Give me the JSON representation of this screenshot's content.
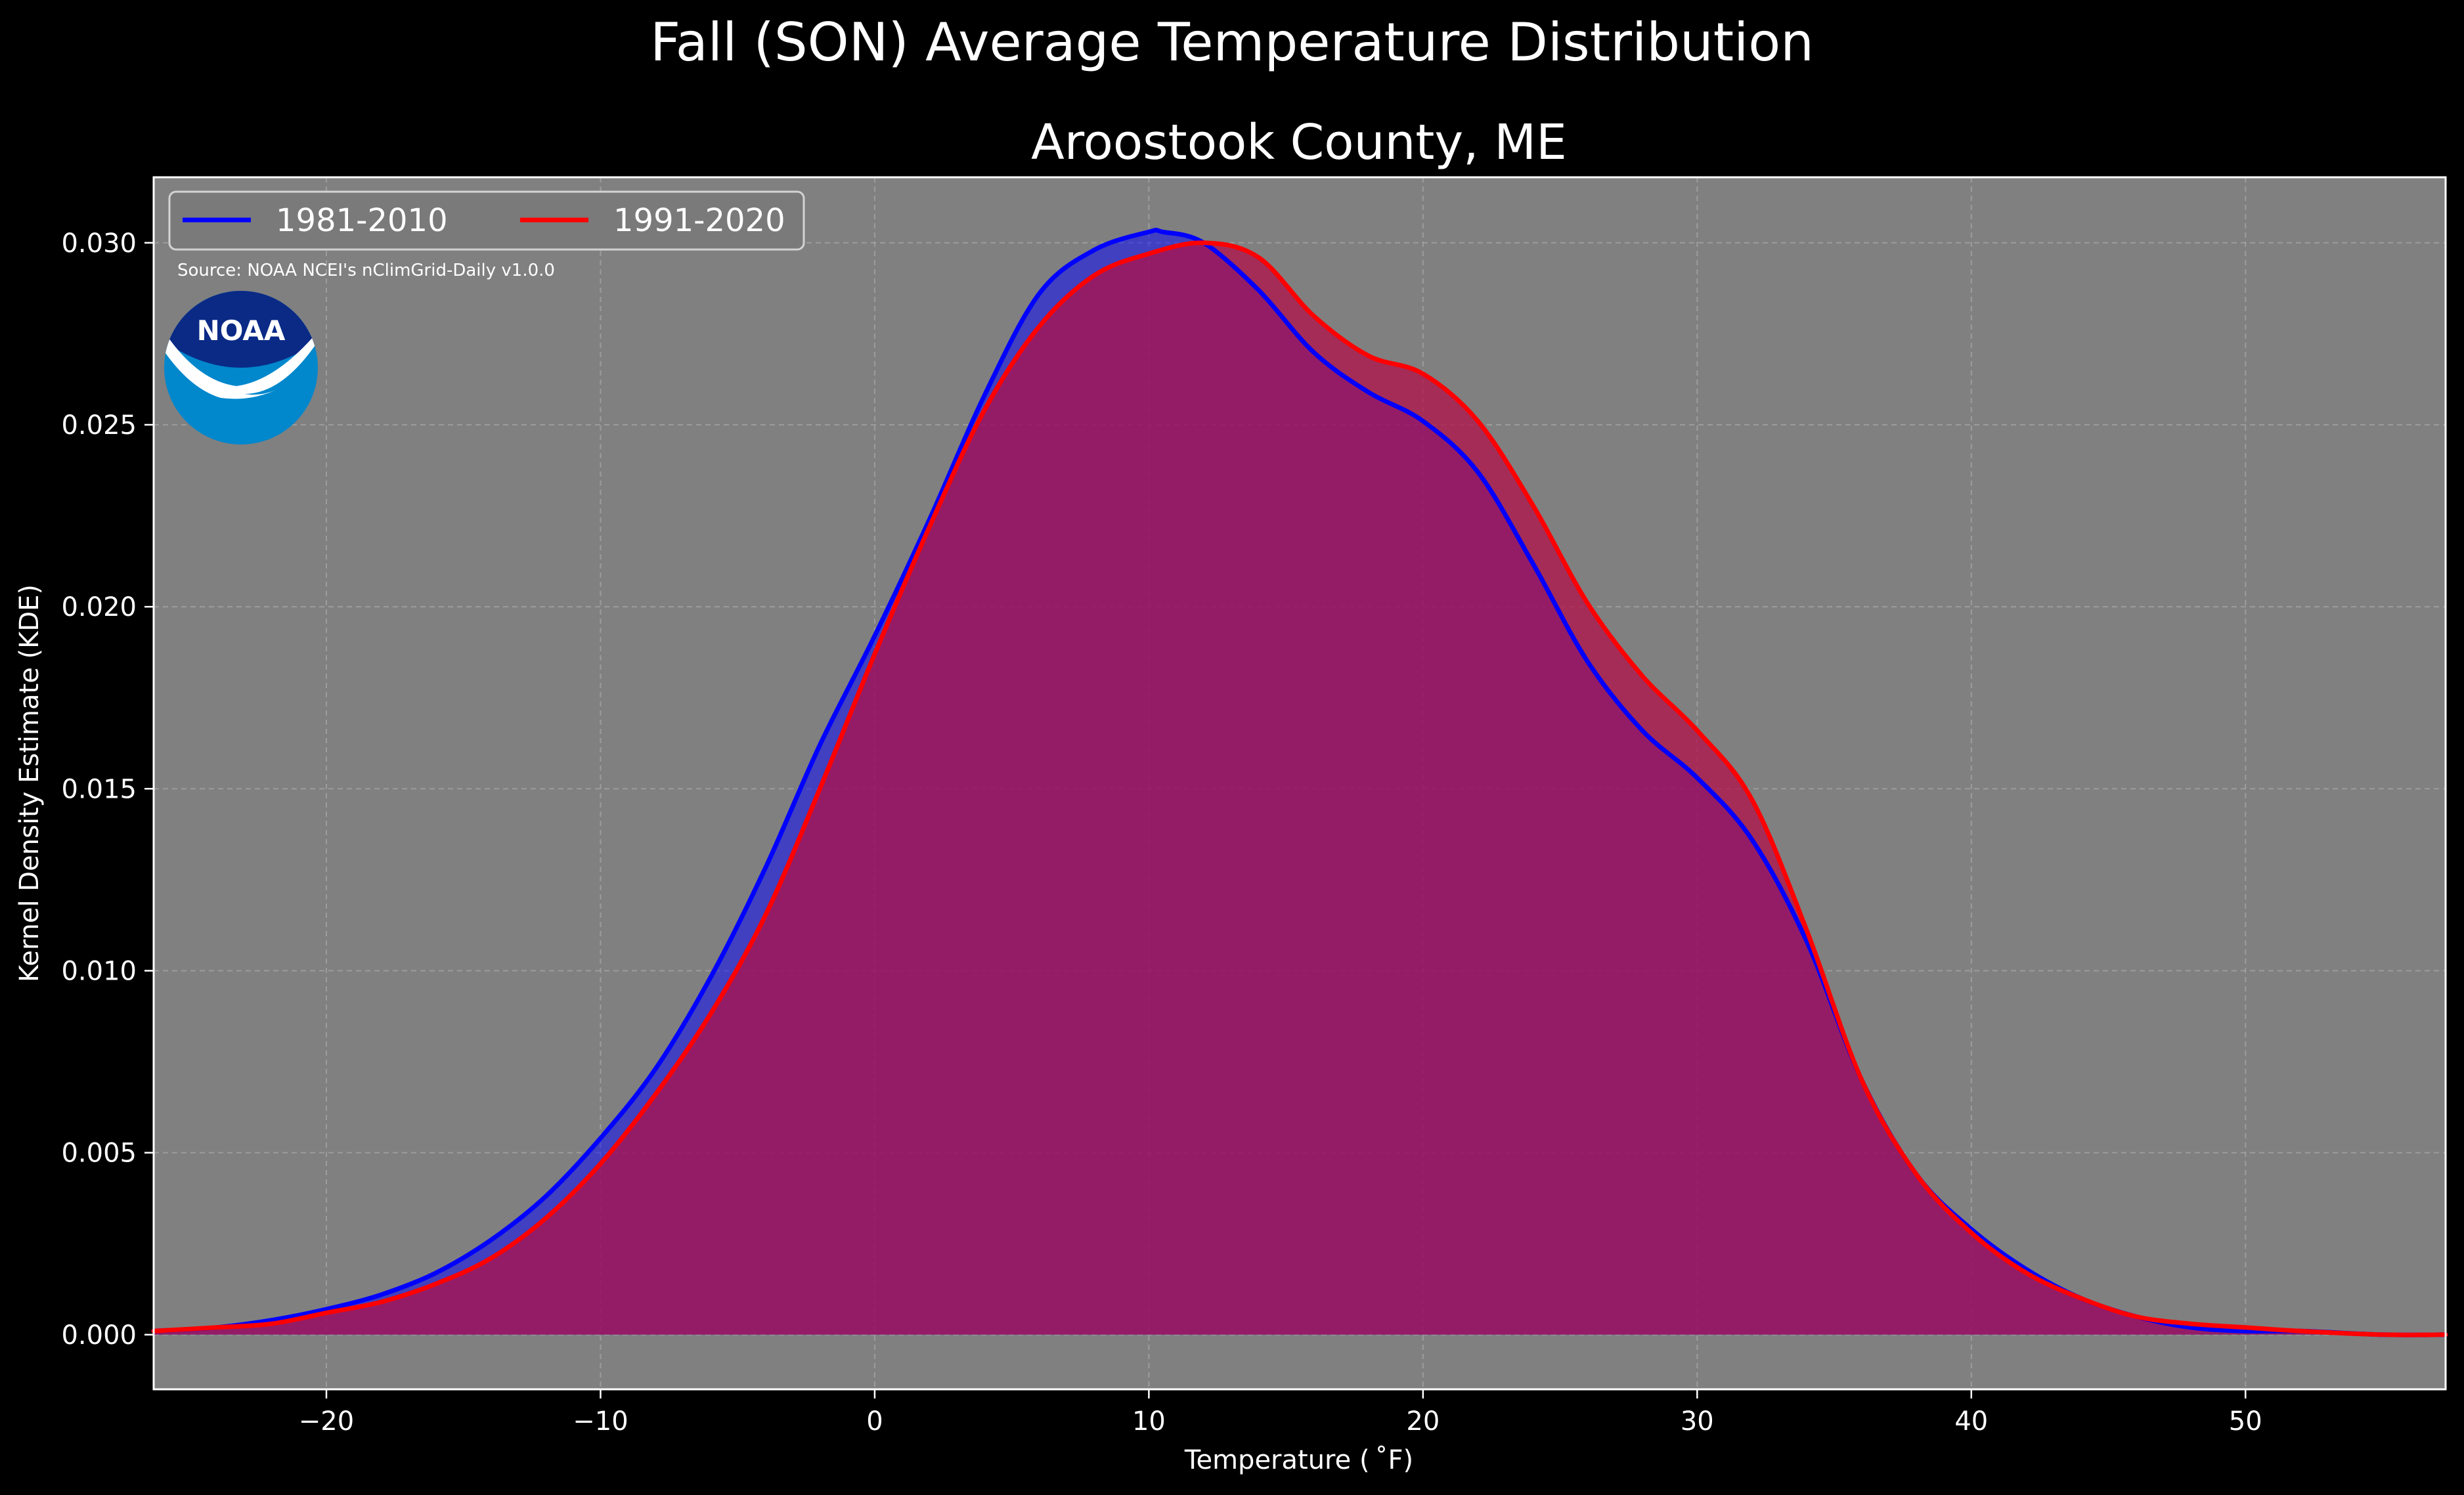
{
  "figure": {
    "suptitle": "Fall (SON) Average Temperature Distribution",
    "background": "#000000",
    "axes_facecolor": "#808080"
  },
  "chart_data": {
    "type": "area",
    "title": "Aroostook County, ME",
    "xlabel": "Temperature ($^\\circ$F)",
    "xlabel_display": "Temperature ( ˚F)",
    "ylabel": "Kernel Density Estimate (KDE)",
    "xlim": [
      -26.3,
      57.3
    ],
    "ylim": [
      -0.0015,
      0.0318
    ],
    "xticks": [
      -20,
      -10,
      0,
      10,
      20,
      30,
      40,
      50
    ],
    "xtick_labels": [
      "−20",
      "−10",
      "0",
      "10",
      "20",
      "30",
      "40",
      "50"
    ],
    "yticks": [
      0.0,
      0.005,
      0.01,
      0.015,
      0.02,
      0.025,
      0.03
    ],
    "ytick_labels": [
      "0.000",
      "0.005",
      "0.010",
      "0.015",
      "0.020",
      "0.025",
      "0.030"
    ],
    "grid": true,
    "legend_position": "upper-left",
    "legend_columns": 2,
    "annotation": "Source: NOAA NCEI's nClimGrid-Daily v1.0.0",
    "logo": "noaa-logo",
    "series": [
      {
        "name": "1981-2010",
        "color": "#0000ff",
        "fill_color": "#0000ff",
        "fill_opacity": 0.5,
        "x": [
          -26.3,
          -24,
          -22,
          -20,
          -18,
          -16,
          -14,
          -12,
          -10,
          -8,
          -6,
          -4,
          -2,
          0,
          2,
          4,
          6,
          8,
          10,
          10.5,
          12,
          14,
          16,
          18,
          20,
          22,
          24,
          26,
          28,
          30,
          32,
          34,
          36,
          38,
          40,
          42,
          44,
          46,
          48,
          50,
          52,
          55,
          57.3
        ],
        "y": [
          0.0001,
          0.0002,
          0.0004,
          0.0007,
          0.0011,
          0.0017,
          0.0026,
          0.0038,
          0.0054,
          0.0073,
          0.0098,
          0.0128,
          0.0162,
          0.0192,
          0.0224,
          0.0258,
          0.0286,
          0.0298,
          0.0303,
          0.0303,
          0.03,
          0.0287,
          0.027,
          0.0259,
          0.0251,
          0.0237,
          0.0212,
          0.0185,
          0.0166,
          0.0153,
          0.0136,
          0.0108,
          0.007,
          0.0044,
          0.0029,
          0.0018,
          0.001,
          0.0005,
          0.0002,
          0.0001,
          0.0001,
          0.0,
          0.0
        ]
      },
      {
        "name": "1991-2020",
        "color": "#ff0000",
        "fill_color": "#b0104a",
        "fill_opacity": 0.75,
        "x": [
          -26.3,
          -24,
          -22,
          -20,
          -18,
          -16,
          -14,
          -12,
          -10,
          -8,
          -6,
          -4,
          -2,
          0,
          2,
          4,
          6,
          8,
          10,
          12,
          14,
          16,
          18,
          20,
          22,
          24,
          26,
          28,
          30,
          32,
          34,
          36,
          38,
          40,
          42,
          44,
          46,
          48,
          50,
          52,
          55,
          57.3
        ],
        "y": [
          0.0001,
          0.0002,
          0.0003,
          0.0006,
          0.0009,
          0.0014,
          0.0021,
          0.0032,
          0.0047,
          0.0066,
          0.0088,
          0.0115,
          0.015,
          0.0187,
          0.0222,
          0.0254,
          0.0277,
          0.0291,
          0.0297,
          0.03,
          0.0296,
          0.028,
          0.0269,
          0.0264,
          0.0251,
          0.0228,
          0.0201,
          0.0181,
          0.0166,
          0.0147,
          0.0111,
          0.007,
          0.0044,
          0.0028,
          0.0017,
          0.001,
          0.0005,
          0.0003,
          0.0002,
          0.0001,
          0.0,
          0.0
        ]
      }
    ]
  }
}
